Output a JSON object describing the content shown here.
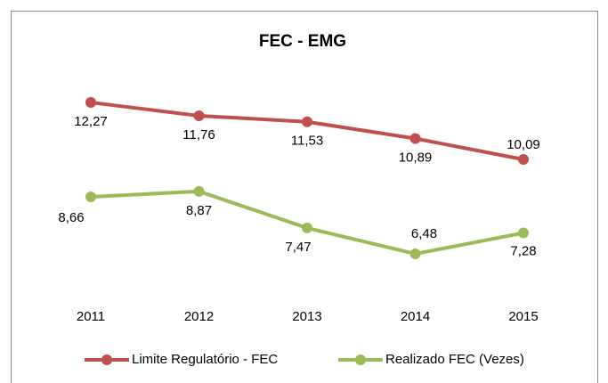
{
  "chart_data": {
    "type": "line",
    "title": "FEC - EMG",
    "categories": [
      "2011",
      "2012",
      "2013",
      "2014",
      "2015"
    ],
    "series": [
      {
        "name": "Limite Regulatório - FEC",
        "color": "#c0504d",
        "values": [
          12.27,
          11.76,
          11.53,
          10.89,
          10.09
        ],
        "value_labels": [
          "12,27",
          "11,76",
          "11,53",
          "10,89",
          "10,09"
        ]
      },
      {
        "name": "Realizado FEC (Vezes)",
        "color": "#9bbb59",
        "values": [
          8.66,
          8.87,
          7.47,
          6.48,
          7.28
        ],
        "value_labels": [
          "8,66",
          "8,87",
          "7,47",
          "6,48",
          "7,28"
        ]
      }
    ],
    "legend": "bottom"
  }
}
